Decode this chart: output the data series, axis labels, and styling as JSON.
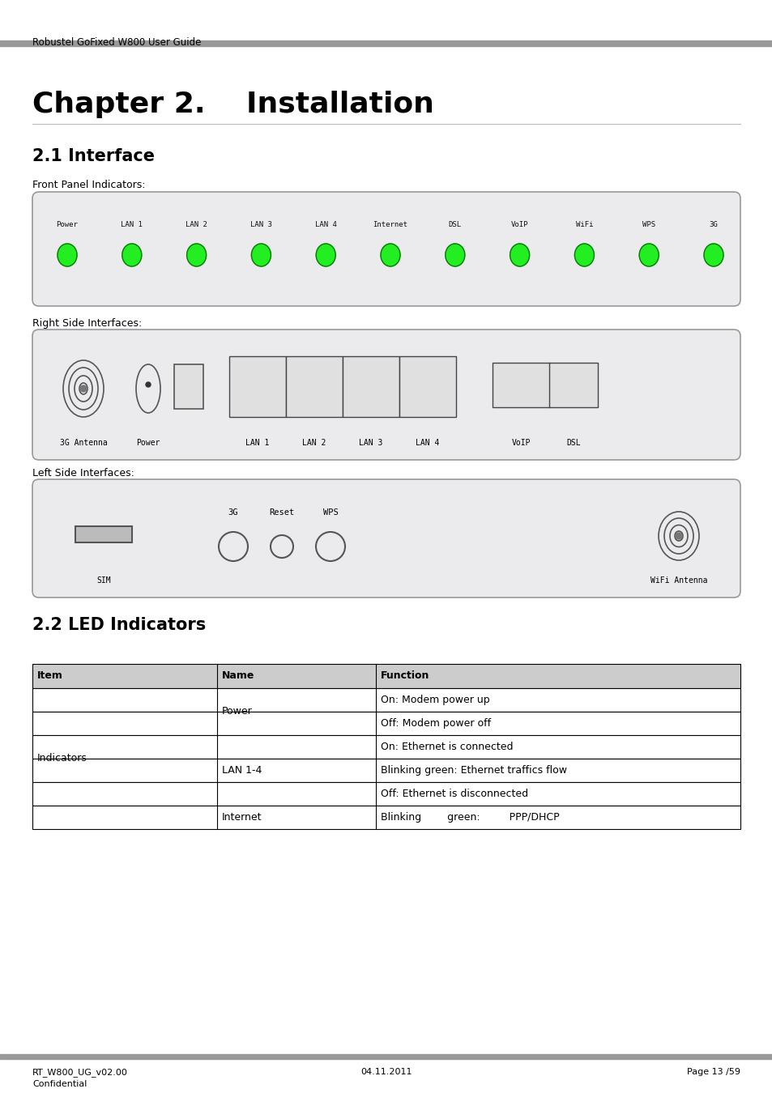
{
  "header_text": "Robustel GoFixed W800 User Guide",
  "chapter_title": "Chapter 2.    Installation",
  "section1_title": "2.1 Interface",
  "front_panel_label": "Front Panel Indicators:",
  "right_side_label": "Right Side Interfaces:",
  "left_side_label": "Left Side Interfaces:",
  "section2_title": "2.2 LED Indicators",
  "led_labels": [
    "Power",
    "LAN 1",
    "LAN 2",
    "LAN 3",
    "LAN 4",
    "Internet",
    "DSL",
    "VoIP",
    "WiFi",
    "WPS",
    "3G"
  ],
  "footer_left1": "RT_W800_UG_v02.00",
  "footer_left2": "Confidential",
  "footer_center": "04.11.2011",
  "footer_right": "Page 13 /59",
  "bg_color": "#ffffff",
  "header_bar_color": "#999999",
  "footer_bar_color": "#999999",
  "panel_bg": "#ebebee",
  "led_color": "#22ee22",
  "led_dark": "#117711",
  "table_header_bg": "#cccccc",
  "table_border": "#000000",
  "port_bg": "#e0e0e0"
}
